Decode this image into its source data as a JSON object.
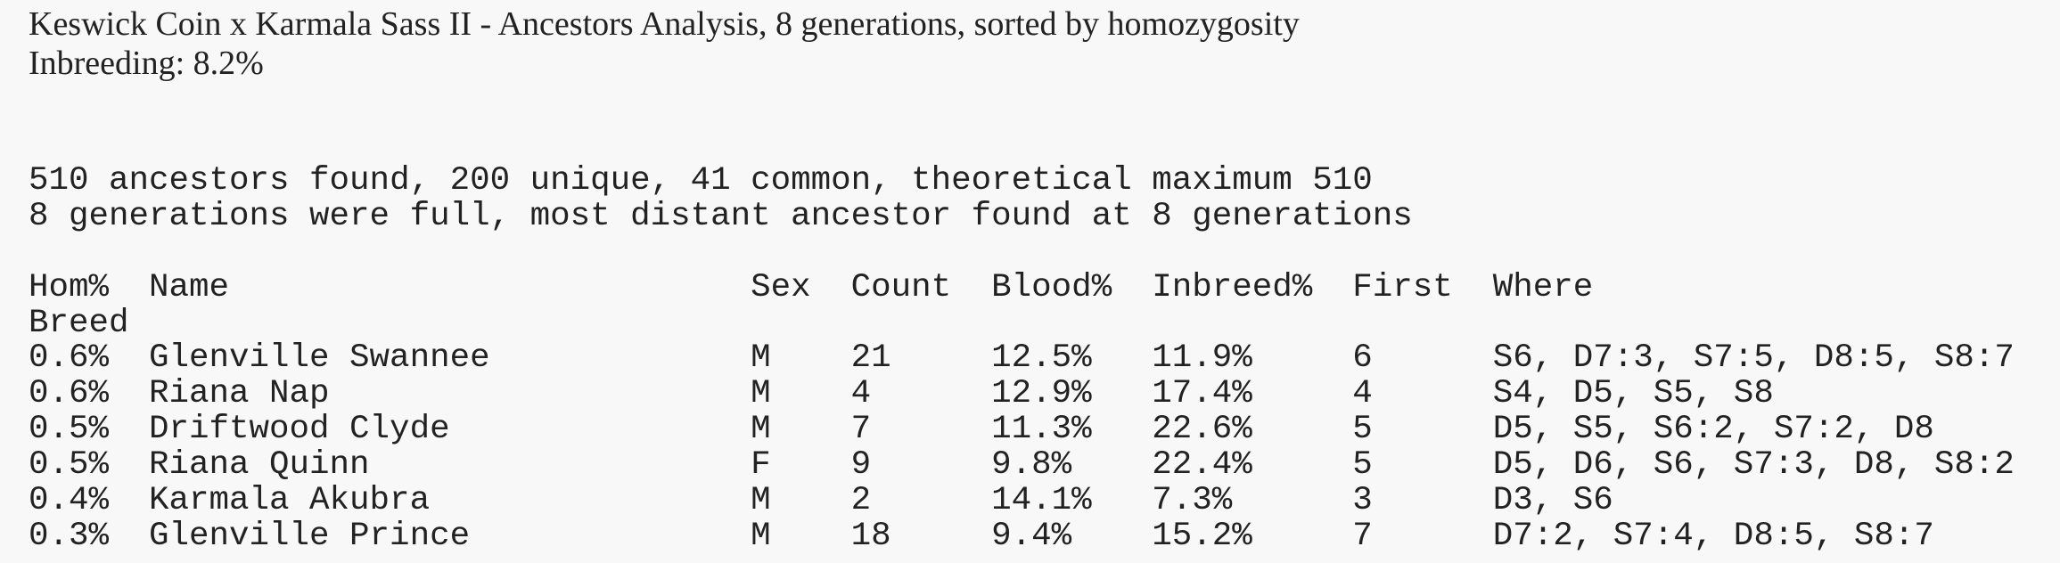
{
  "header": {
    "title": "Keswick Coin x Karmala Sass II - Ancestors Analysis, 8 generations, sorted by homozygosity",
    "inbreeding": "Inbreeding: 8.2%"
  },
  "summary": [
    "510 ancestors found, 200 unique, 41 common, theoretical maximum 510",
    "8 generations were full, most distant ancestor found at 8 generations"
  ],
  "table": {
    "columns": [
      "Hom%",
      "Name",
      "Sex",
      "Count",
      "Blood%",
      "Inbreed%",
      "First",
      "Where"
    ],
    "header_line2": "Breed",
    "rows": [
      [
        "0.6%",
        "Glenville Swannee",
        "M",
        "21",
        "12.5%",
        "11.9%",
        "6",
        "S6, D7:3, S7:5, D8:5, S8:7"
      ],
      [
        "0.6%",
        "Riana Nap",
        "M",
        "4",
        "12.9%",
        "17.4%",
        "4",
        "S4, D5, S5, S8"
      ],
      [
        "0.5%",
        "Driftwood Clyde",
        "M",
        "7",
        "11.3%",
        "22.6%",
        "5",
        "D5, S5, S6:2, S7:2, D8"
      ],
      [
        "0.5%",
        "Riana Quinn",
        "F",
        "9",
        "9.8%",
        "22.4%",
        "5",
        "D5, D6, S6, S7:3, D8, S8:2"
      ],
      [
        "0.4%",
        "Karmala Akubra",
        "M",
        "2",
        "14.1%",
        "7.3%",
        "3",
        "D3, S6"
      ],
      [
        "0.3%",
        "Glenville Prince",
        "M",
        "18",
        "9.4%",
        "15.2%",
        "7",
        "D7:2, S7:4, D8:5, S8:7"
      ]
    ]
  }
}
